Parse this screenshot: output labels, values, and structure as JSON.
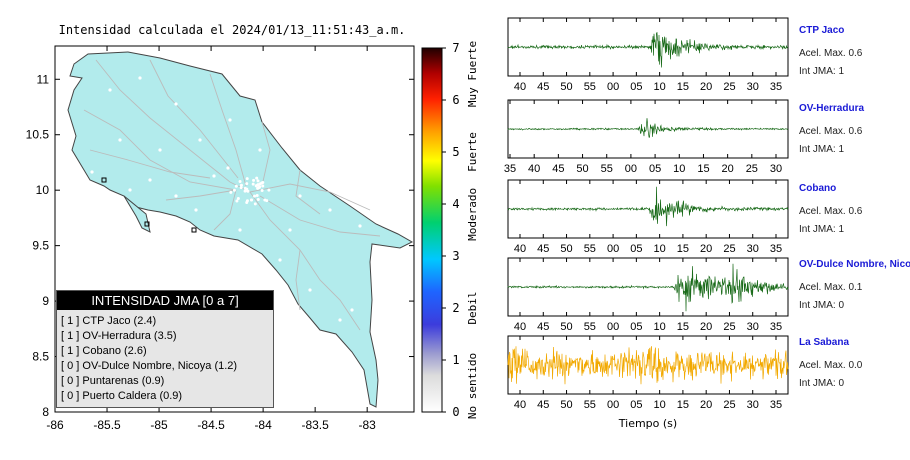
{
  "map": {
    "title": "Intensidad calculada el 2024/01/13_11:51:43_a.m.",
    "lon_ticks": [
      "-86",
      "-85.5",
      "-85",
      "-84.5",
      "-84",
      "-83.5",
      "-83"
    ],
    "lat_ticks": [
      "11",
      "10.5",
      "10",
      "9.5",
      "9",
      "8.5",
      "8"
    ],
    "land_color": "#b2ebec",
    "road_color": "#bbbbbb"
  },
  "legend": {
    "title": "INTENSIDAD JMA [0 a 7]",
    "items": [
      {
        "level": "[ 1 ]",
        "label": "CTP Jaco (2.4)"
      },
      {
        "level": "[ 1 ]",
        "label": "OV-Herradura (3.5)"
      },
      {
        "level": "[ 1 ]",
        "label": "Cobano (2.6)"
      },
      {
        "level": "[ 0 ]",
        "label": "OV-Dulce Nombre, Nicoya (1.2)"
      },
      {
        "level": "[ 0 ]",
        "label": "Puntarenas (0.9)"
      },
      {
        "level": "[ 0 ]",
        "label": "Puerto Caldera (0.9)"
      }
    ]
  },
  "colorbar": {
    "ticks": [
      "0",
      "1",
      "2",
      "3",
      "4",
      "5",
      "6",
      "7"
    ],
    "categories": [
      "No sentido",
      "Debil",
      "Moderado",
      "Fuerte",
      "Muy Fuerte"
    ]
  },
  "seismograms": {
    "xlabel": "Tiempo (s)",
    "traces": [
      {
        "name": "CTP Jaco",
        "accel": "Acel. Max. 0.6",
        "jma": "Int JMA: 1",
        "color": "#1a6b1a",
        "ticks": [
          "40",
          "45",
          "50",
          "55",
          "00",
          "05",
          "10",
          "15",
          "20",
          "25",
          "30",
          "35"
        ]
      },
      {
        "name": "OV-Herradura",
        "accel": "Acel. Max. 0.6",
        "jma": "Int JMA: 1",
        "color": "#1a6b1a",
        "ticks": [
          "35",
          "40",
          "45",
          "50",
          "55",
          "00",
          "05",
          "10",
          "15",
          "20",
          "25",
          "30"
        ]
      },
      {
        "name": "Cobano",
        "accel": "Acel. Max. 0.6",
        "jma": "Int JMA: 1",
        "color": "#1a6b1a",
        "ticks": [
          "40",
          "45",
          "50",
          "55",
          "00",
          "05",
          "10",
          "15",
          "20",
          "25",
          "30",
          "35"
        ]
      },
      {
        "name": "OV-Dulce Nombre, Nicoya",
        "accel": "Acel. Max. 0.1",
        "jma": "Int JMA: 0",
        "color": "#1a6b1a",
        "ticks": [
          "40",
          "45",
          "50",
          "55",
          "00",
          "05",
          "10",
          "15",
          "20",
          "25",
          "30",
          "35"
        ]
      },
      {
        "name": "La Sabana",
        "accel": "Acel. Max. 0.0",
        "jma": "Int JMA: 0",
        "color": "#f2a900",
        "ticks": [
          "40",
          "45",
          "50",
          "55",
          "00",
          "05",
          "10",
          "15",
          "20",
          "25",
          "30",
          "35"
        ]
      }
    ]
  },
  "chart_data": [
    {
      "type": "map",
      "title": "Intensidad calculada el 2024/01/13_11:51:43_a.m.",
      "xlim": [
        -86,
        -82.55
      ],
      "ylim": [
        8,
        11.3
      ],
      "x_ticks": [
        -86,
        -85.5,
        -85,
        -84.5,
        -84,
        -83.5,
        -83
      ],
      "y_ticks": [
        11,
        10.5,
        10,
        9.5,
        9,
        8.5,
        8
      ],
      "stations_marked": [
        "CTP Jaco",
        "OV-Herradura",
        "Cobano",
        "OV-Dulce Nombre, Nicoya",
        "Puntarenas",
        "Puerto Caldera"
      ],
      "legend_title": "INTENSIDAD JMA [0 a 7]",
      "legend_placement": "bottom-left"
    },
    {
      "type": "colorbar",
      "range": [
        0,
        7
      ],
      "ticks": [
        0,
        1,
        2,
        3,
        4,
        5,
        6,
        7
      ],
      "categories": [
        "No sentido",
        "Debil",
        "Moderado",
        "Fuerte",
        "Muy Fuerte"
      ]
    },
    {
      "type": "line",
      "xlabel": "Tiempo (s)",
      "series": [
        {
          "name": "CTP Jaco",
          "accel_max": 0.6,
          "int_jma": 1
        },
        {
          "name": "OV-Herradura",
          "accel_max": 0.6,
          "int_jma": 1
        },
        {
          "name": "Cobano",
          "accel_max": 0.6,
          "int_jma": 1
        },
        {
          "name": "OV-Dulce Nombre, Nicoya",
          "accel_max": 0.1,
          "int_jma": 0
        },
        {
          "name": "La Sabana",
          "accel_max": 0.0,
          "int_jma": 0
        }
      ]
    }
  ]
}
